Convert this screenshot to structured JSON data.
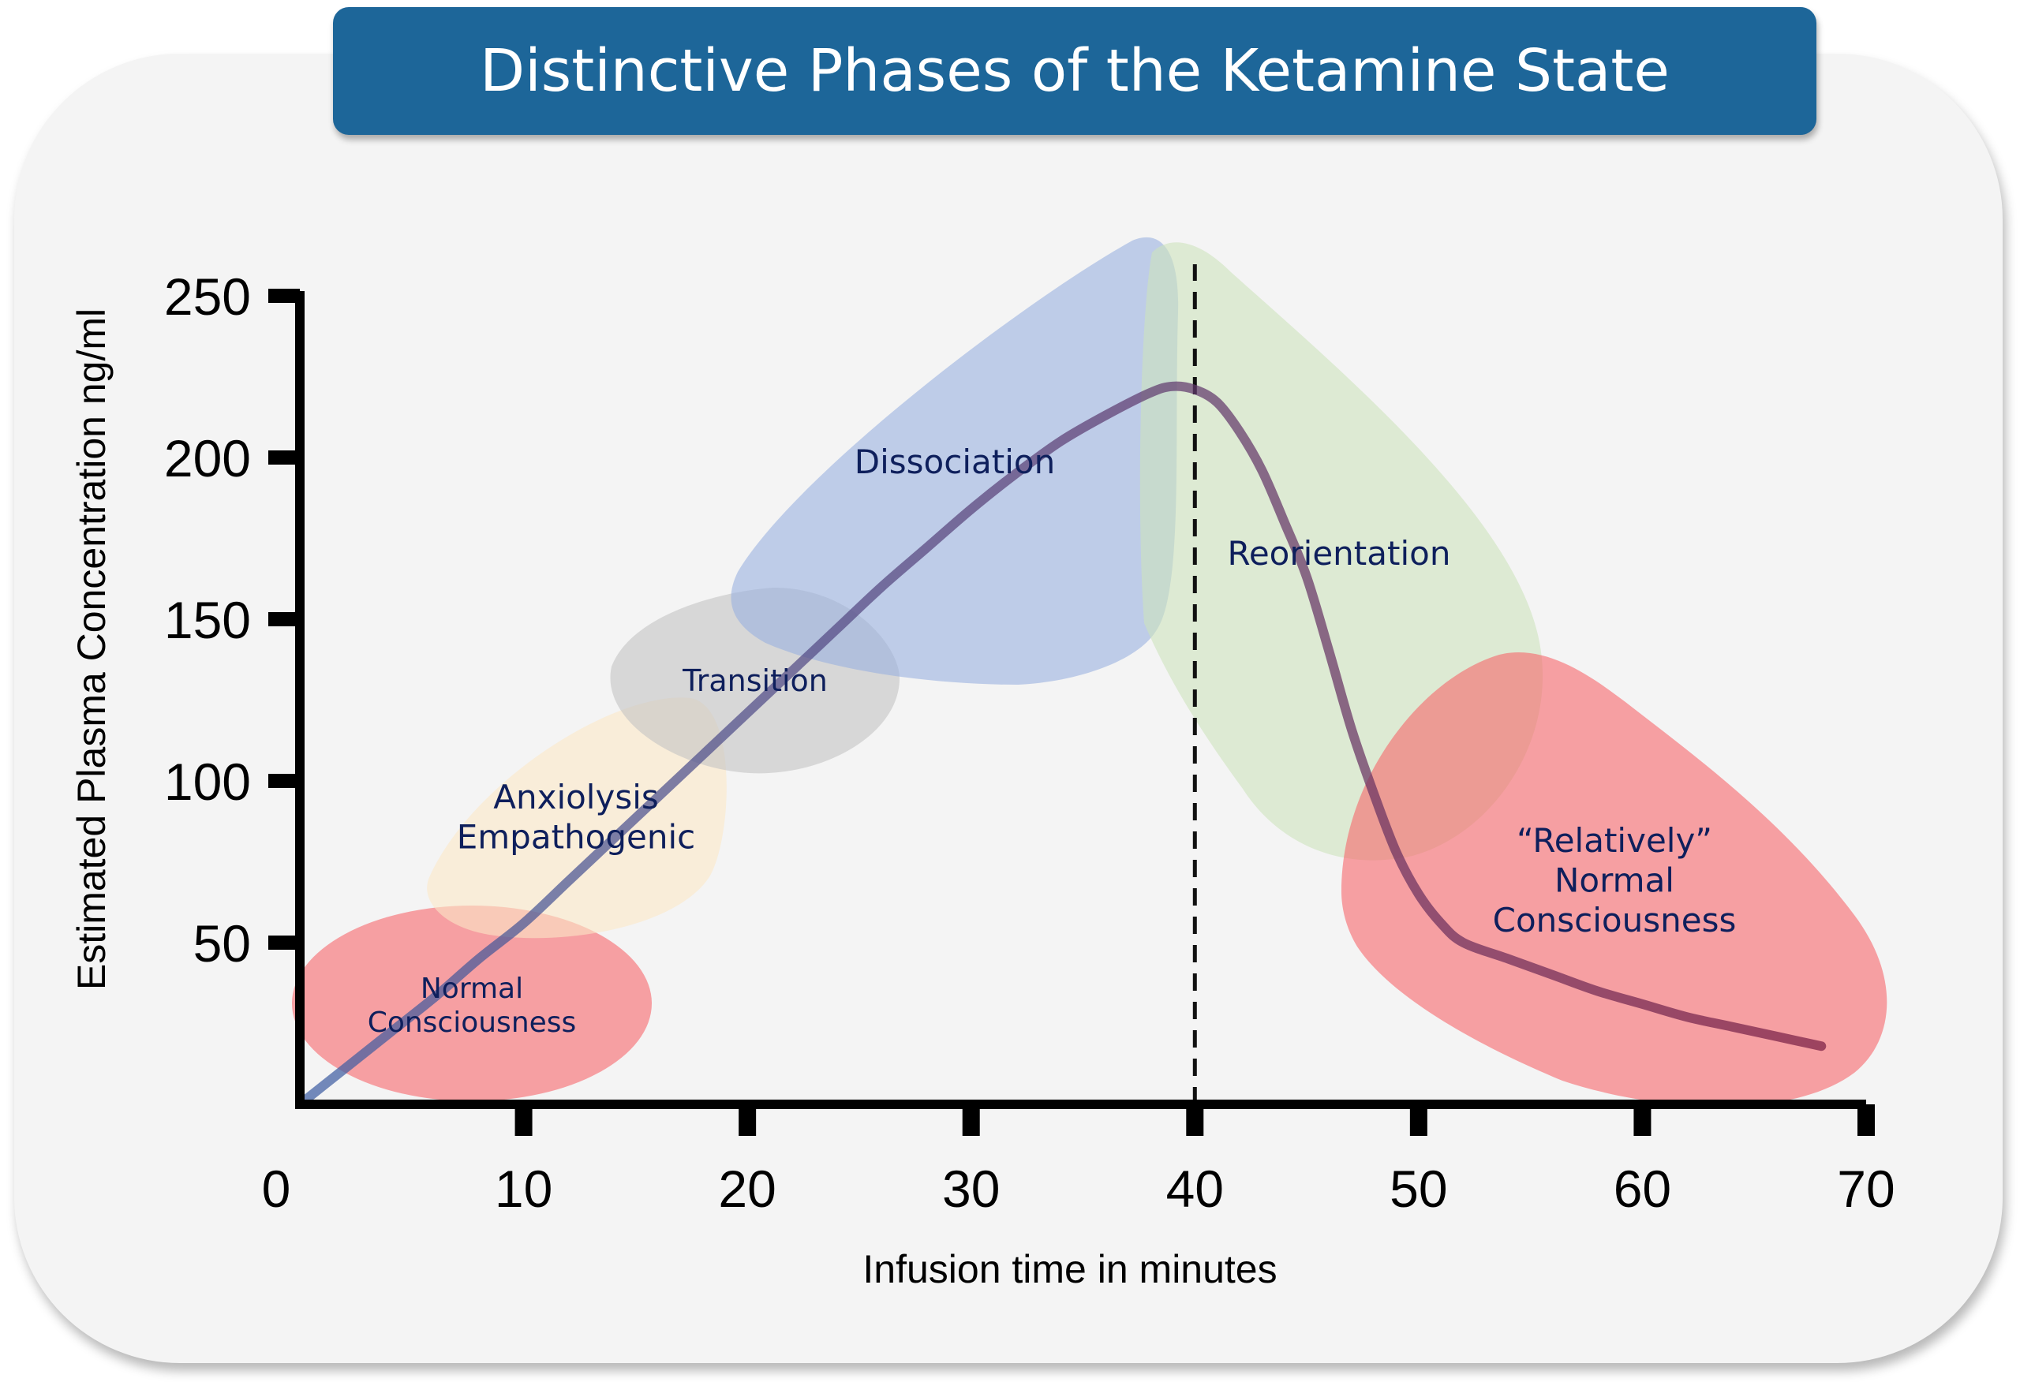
{
  "chart_data": {
    "type": "line",
    "title": "Distinctive Phases of the Ketamine State",
    "xlabel": "Infusion time in minutes",
    "ylabel": "Estimated Plasma Concentration ng/ml",
    "xlim": [
      0,
      70
    ],
    "ylim": [
      0,
      250
    ],
    "x_ticks": [
      0,
      10,
      20,
      30,
      40,
      50,
      60,
      70
    ],
    "y_ticks": [
      50,
      100,
      150,
      200,
      250
    ],
    "grid": false,
    "reference_line": {
      "x": 40,
      "style": "dashed"
    },
    "series": [
      {
        "x": [
          0,
          2,
          4,
          6,
          8,
          10,
          12,
          14,
          16,
          18,
          20,
          22,
          24,
          26,
          28,
          30,
          32,
          34,
          36,
          38,
          39,
          40,
          41,
          42,
          43,
          44,
          45,
          46,
          47,
          48,
          49,
          50,
          51,
          52,
          54,
          56,
          58,
          60,
          62,
          64,
          66,
          68
        ],
        "y": [
          0,
          11,
          22,
          33,
          45,
          56,
          69,
          82,
          95,
          108,
          121,
          134,
          147,
          160,
          172,
          184,
          195,
          205,
          213,
          220,
          222,
          221,
          217,
          208,
          196,
          180,
          163,
          140,
          116,
          96,
          78,
          65,
          56,
          50,
          45,
          40,
          35,
          31,
          27,
          24,
          21,
          18
        ],
        "color_start": "#3e5fa4",
        "color_end": "#7a1f45"
      }
    ],
    "phases": [
      {
        "label_lines": [
          "Normal",
          "Consciousness"
        ],
        "color": "#f6656a"
      },
      {
        "label_lines": [
          "Anxiolysis",
          "Empathogenic"
        ],
        "color": "#fbe7c6"
      },
      {
        "label_lines": [
          "Transition"
        ],
        "color": "#c3c3c3"
      },
      {
        "label_lines": [
          "Dissociation"
        ],
        "color": "#9ab1e0"
      },
      {
        "label_lines": [
          "Reorientation"
        ],
        "color": "#cde3bd"
      },
      {
        "label_lines": [
          "“Relatively”",
          "Normal",
          "Consciousness"
        ],
        "color": "#f6656a"
      }
    ]
  }
}
